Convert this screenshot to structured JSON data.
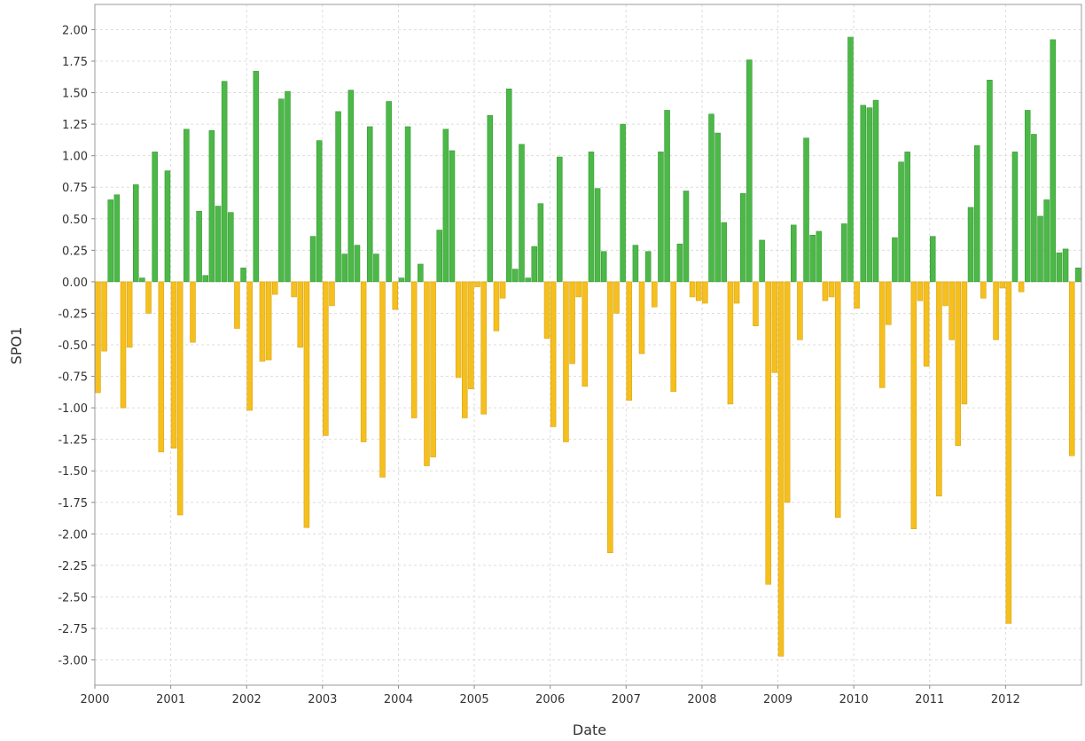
{
  "chart_data": {
    "type": "bar",
    "x_label": "Date",
    "y_label": "SPO1",
    "positive_color": "#4cb848",
    "negative_color": "#f5bf1e",
    "grid": true,
    "ylim": [
      -3.2,
      2.2
    ],
    "yticks": [
      {
        "value": 2,
        "label": "2.00"
      },
      {
        "value": 1.75,
        "label": "1.75"
      },
      {
        "value": 1.5,
        "label": "1.50"
      },
      {
        "value": 1.25,
        "label": "1.25"
      },
      {
        "value": 1,
        "label": "1.00"
      },
      {
        "value": 0.75,
        "label": "0.75"
      },
      {
        "value": 0.5,
        "label": "0.50"
      },
      {
        "value": 0.25,
        "label": "0.25"
      },
      {
        "value": 0,
        "label": "0.00"
      },
      {
        "value": -0.25,
        "label": "-0.25"
      },
      {
        "value": -0.5,
        "label": "-0.50"
      },
      {
        "value": -0.75,
        "label": "-0.75"
      },
      {
        "value": -1,
        "label": "-1.00"
      },
      {
        "value": -1.25,
        "label": "-1.25"
      },
      {
        "value": -1.5,
        "label": "-1.50"
      },
      {
        "value": -1.75,
        "label": "-1.75"
      },
      {
        "value": -2,
        "label": "-2.00"
      },
      {
        "value": -2.25,
        "label": "-2.25"
      },
      {
        "value": -2.5,
        "label": "-2.50"
      },
      {
        "value": -2.75,
        "label": "-2.75"
      },
      {
        "value": -3,
        "label": "-3.00"
      }
    ],
    "categories": [
      "2000",
      null,
      null,
      null,
      null,
      null,
      null,
      null,
      null,
      null,
      null,
      null,
      "2001",
      null,
      null,
      null,
      null,
      null,
      null,
      null,
      null,
      null,
      null,
      null,
      "2002",
      null,
      null,
      null,
      null,
      null,
      null,
      null,
      null,
      null,
      null,
      null,
      "2003",
      null,
      null,
      null,
      null,
      null,
      null,
      null,
      null,
      null,
      null,
      null,
      "2004",
      null,
      null,
      null,
      null,
      null,
      null,
      null,
      null,
      null,
      null,
      null,
      "2005",
      null,
      null,
      null,
      null,
      null,
      null,
      null,
      null,
      null,
      null,
      null,
      "2006",
      null,
      null,
      null,
      null,
      null,
      null,
      null,
      null,
      null,
      null,
      null,
      "2007",
      null,
      null,
      null,
      null,
      null,
      null,
      null,
      null,
      null,
      null,
      null,
      "2008",
      null,
      null,
      null,
      null,
      null,
      null,
      null,
      null,
      null,
      null,
      null,
      "2009",
      null,
      null,
      null,
      null,
      null,
      null,
      null,
      null,
      null,
      null,
      null,
      "2010",
      null,
      null,
      null,
      null,
      null,
      null,
      null,
      null,
      null,
      null,
      null,
      "2011",
      null,
      null,
      null,
      null,
      null,
      null,
      null,
      null,
      null,
      null,
      null,
      "2012",
      null,
      null,
      null,
      null,
      null,
      null,
      null,
      null,
      null,
      null,
      null
    ],
    "values": [
      -0.88,
      -0.55,
      0.65,
      0.69,
      -1.0,
      -0.52,
      0.77,
      0.03,
      -0.25,
      1.03,
      -1.35,
      0.88,
      -1.32,
      -1.85,
      1.21,
      -0.48,
      0.56,
      0.05,
      1.2,
      0.6,
      1.59,
      0.55,
      -0.37,
      0.11,
      -1.02,
      1.67,
      -0.63,
      -0.62,
      -0.1,
      1.45,
      1.51,
      -0.12,
      -0.52,
      -1.95,
      0.36,
      1.12,
      -1.22,
      -0.19,
      1.35,
      0.22,
      1.52,
      0.29,
      -1.27,
      1.23,
      0.22,
      -1.55,
      1.43,
      -0.22,
      0.03,
      1.23,
      -1.08,
      0.14,
      -1.46,
      -1.39,
      0.41,
      1.21,
      1.04,
      -0.76,
      -1.08,
      -0.85,
      -0.04,
      -1.05,
      1.32,
      -0.39,
      -0.13,
      1.53,
      0.1,
      1.09,
      0.03,
      0.28,
      0.62,
      -0.45,
      -1.15,
      0.99,
      -1.27,
      -0.65,
      -0.12,
      -0.83,
      1.03,
      0.74,
      0.24,
      -2.15,
      -0.25,
      1.25,
      -0.94,
      0.29,
      -0.57,
      0.24,
      -0.2,
      1.03,
      1.36,
      -0.87,
      0.3,
      0.72,
      -0.12,
      -0.15,
      -0.17,
      1.33,
      1.18,
      0.47,
      -0.97,
      -0.17,
      0.7,
      1.76,
      -0.35,
      0.33,
      -2.4,
      -0.72,
      -2.97,
      -1.75,
      0.45,
      -0.46,
      1.14,
      0.37,
      0.4,
      -0.15,
      -0.12,
      -1.87,
      0.46,
      1.94,
      -0.21,
      1.4,
      1.38,
      1.44,
      -0.84,
      -0.34,
      0.35,
      0.95,
      1.03,
      -1.96,
      -0.15,
      -0.67,
      0.36,
      -1.7,
      -0.19,
      -0.46,
      -1.3,
      -0.97,
      0.59,
      1.08,
      -0.13,
      1.6,
      -0.46,
      -0.05,
      -2.71,
      1.03,
      -0.08,
      1.36,
      1.17,
      0.52,
      0.65,
      1.92,
      0.23,
      0.26,
      -1.38,
      0.11
    ]
  }
}
